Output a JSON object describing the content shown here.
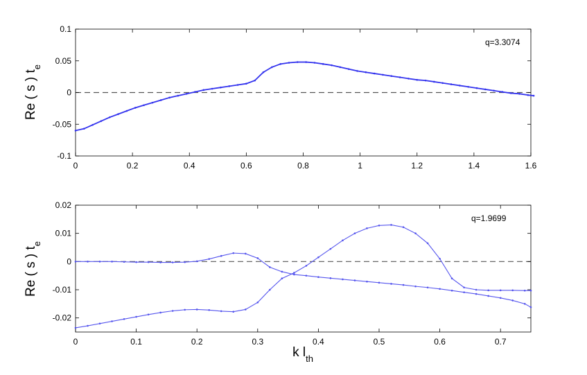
{
  "chart_data": [
    {
      "type": "line",
      "annotation": "q=3.3074",
      "xlabel": "",
      "ylabel": "Re ( s ) t",
      "ylabel_subscript": "e",
      "xlim": [
        0,
        1.6
      ],
      "ylim": [
        -0.1,
        0.1
      ],
      "xticks": [
        "0",
        "0.2",
        "0.4",
        "0.6",
        "0.8",
        "1",
        "1.2",
        "1.4",
        "1.6"
      ],
      "yticks": [
        "-0.1",
        "-0.05",
        "0",
        "0.05",
        "0.1"
      ],
      "grid": false,
      "reference_line": 0,
      "color": "#3333ee",
      "series": [
        {
          "x": [
            0,
            0.03,
            0.06,
            0.09,
            0.12,
            0.15,
            0.18,
            0.21,
            0.24,
            0.27,
            0.3,
            0.33,
            0.36,
            0.39,
            0.42,
            0.45,
            0.48,
            0.51,
            0.54,
            0.57,
            0.6,
            0.63,
            0.66,
            0.69,
            0.72,
            0.75,
            0.78,
            0.81,
            0.84,
            0.87,
            0.9,
            0.93,
            0.96,
            0.99,
            1.02,
            1.05,
            1.08,
            1.11,
            1.14,
            1.17,
            1.2,
            1.23,
            1.26,
            1.29,
            1.32,
            1.35,
            1.38,
            1.41,
            1.44,
            1.47,
            1.5,
            1.53,
            1.56,
            1.59,
            1.61
          ],
          "y": [
            -0.06,
            -0.057,
            -0.051,
            -0.045,
            -0.039,
            -0.034,
            -0.029,
            -0.024,
            -0.02,
            -0.016,
            -0.012,
            -0.008,
            -0.005,
            -0.002,
            0.001,
            0.004,
            0.006,
            0.008,
            0.01,
            0.012,
            0.014,
            0.019,
            0.032,
            0.04,
            0.045,
            0.047,
            0.048,
            0.048,
            0.047,
            0.045,
            0.043,
            0.04,
            0.037,
            0.034,
            0.032,
            0.03,
            0.028,
            0.026,
            0.024,
            0.022,
            0.02,
            0.019,
            0.017,
            0.015,
            0.013,
            0.011,
            0.009,
            0.007,
            0.005,
            0.003,
            0.001,
            -0.001,
            -0.002,
            -0.004,
            -0.005
          ]
        }
      ]
    },
    {
      "type": "line",
      "annotation": "q=1.9699",
      "xlabel": "k l",
      "xlabel_subscript": "th",
      "ylabel": "Re ( s ) t",
      "ylabel_subscript": "e",
      "xlim": [
        0,
        0.75
      ],
      "ylim": [
        -0.025,
        0.02
      ],
      "xticks": [
        "0",
        "0.1",
        "0.2",
        "0.3",
        "0.4",
        "0.5",
        "0.6",
        "0.7"
      ],
      "yticks": [
        "-0.02",
        "-0.01",
        "0",
        "0.01",
        "0.02"
      ],
      "grid": false,
      "reference_line": 0,
      "color": "#5555ee",
      "series": [
        {
          "x": [
            0,
            0.02,
            0.04,
            0.06,
            0.08,
            0.1,
            0.12,
            0.14,
            0.16,
            0.18,
            0.2,
            0.22,
            0.24,
            0.26,
            0.28,
            0.3,
            0.32,
            0.34,
            0.36,
            0.38,
            0.4,
            0.42,
            0.44,
            0.46,
            0.48,
            0.5,
            0.52,
            0.54,
            0.56,
            0.58,
            0.6,
            0.62,
            0.64,
            0.66,
            0.68,
            0.7,
            0.72,
            0.74,
            0.75
          ],
          "y": [
            0,
            0,
            0,
            0,
            -0.0001,
            -0.0002,
            -0.0002,
            -0.0003,
            -0.0003,
            -0.0002,
            0.0001,
            0.0009,
            0.002,
            0.003,
            0.0028,
            0.0012,
            -0.002,
            -0.0036,
            -0.0046,
            -0.005,
            -0.0055,
            -0.0059,
            -0.0063,
            -0.0067,
            -0.0071,
            -0.0075,
            -0.0079,
            -0.0083,
            -0.0088,
            -0.0092,
            -0.0097,
            -0.0103,
            -0.0109,
            -0.0115,
            -0.0122,
            -0.0129,
            -0.0138,
            -0.015,
            -0.0162
          ]
        },
        {
          "x": [
            0,
            0.02,
            0.04,
            0.06,
            0.08,
            0.1,
            0.12,
            0.14,
            0.16,
            0.18,
            0.2,
            0.22,
            0.24,
            0.26,
            0.28,
            0.3,
            0.32,
            0.34,
            0.36,
            0.38,
            0.4,
            0.42,
            0.44,
            0.46,
            0.48,
            0.5,
            0.52,
            0.54,
            0.56,
            0.58,
            0.6,
            0.62,
            0.64,
            0.66,
            0.68,
            0.7,
            0.72,
            0.74,
            0.75
          ],
          "y": [
            -0.0235,
            -0.0228,
            -0.022,
            -0.0212,
            -0.0204,
            -0.0196,
            -0.0188,
            -0.0181,
            -0.0175,
            -0.0171,
            -0.017,
            -0.0172,
            -0.0176,
            -0.0178,
            -0.017,
            -0.0145,
            -0.01,
            -0.006,
            -0.004,
            -0.0015,
            0.0015,
            0.0045,
            0.0075,
            0.01,
            0.0118,
            0.0128,
            0.013,
            0.0122,
            0.01,
            0.0065,
            0.001,
            -0.006,
            -0.0092,
            -0.01,
            -0.0102,
            -0.0102,
            -0.0102,
            -0.0103,
            -0.0103
          ]
        }
      ]
    }
  ]
}
